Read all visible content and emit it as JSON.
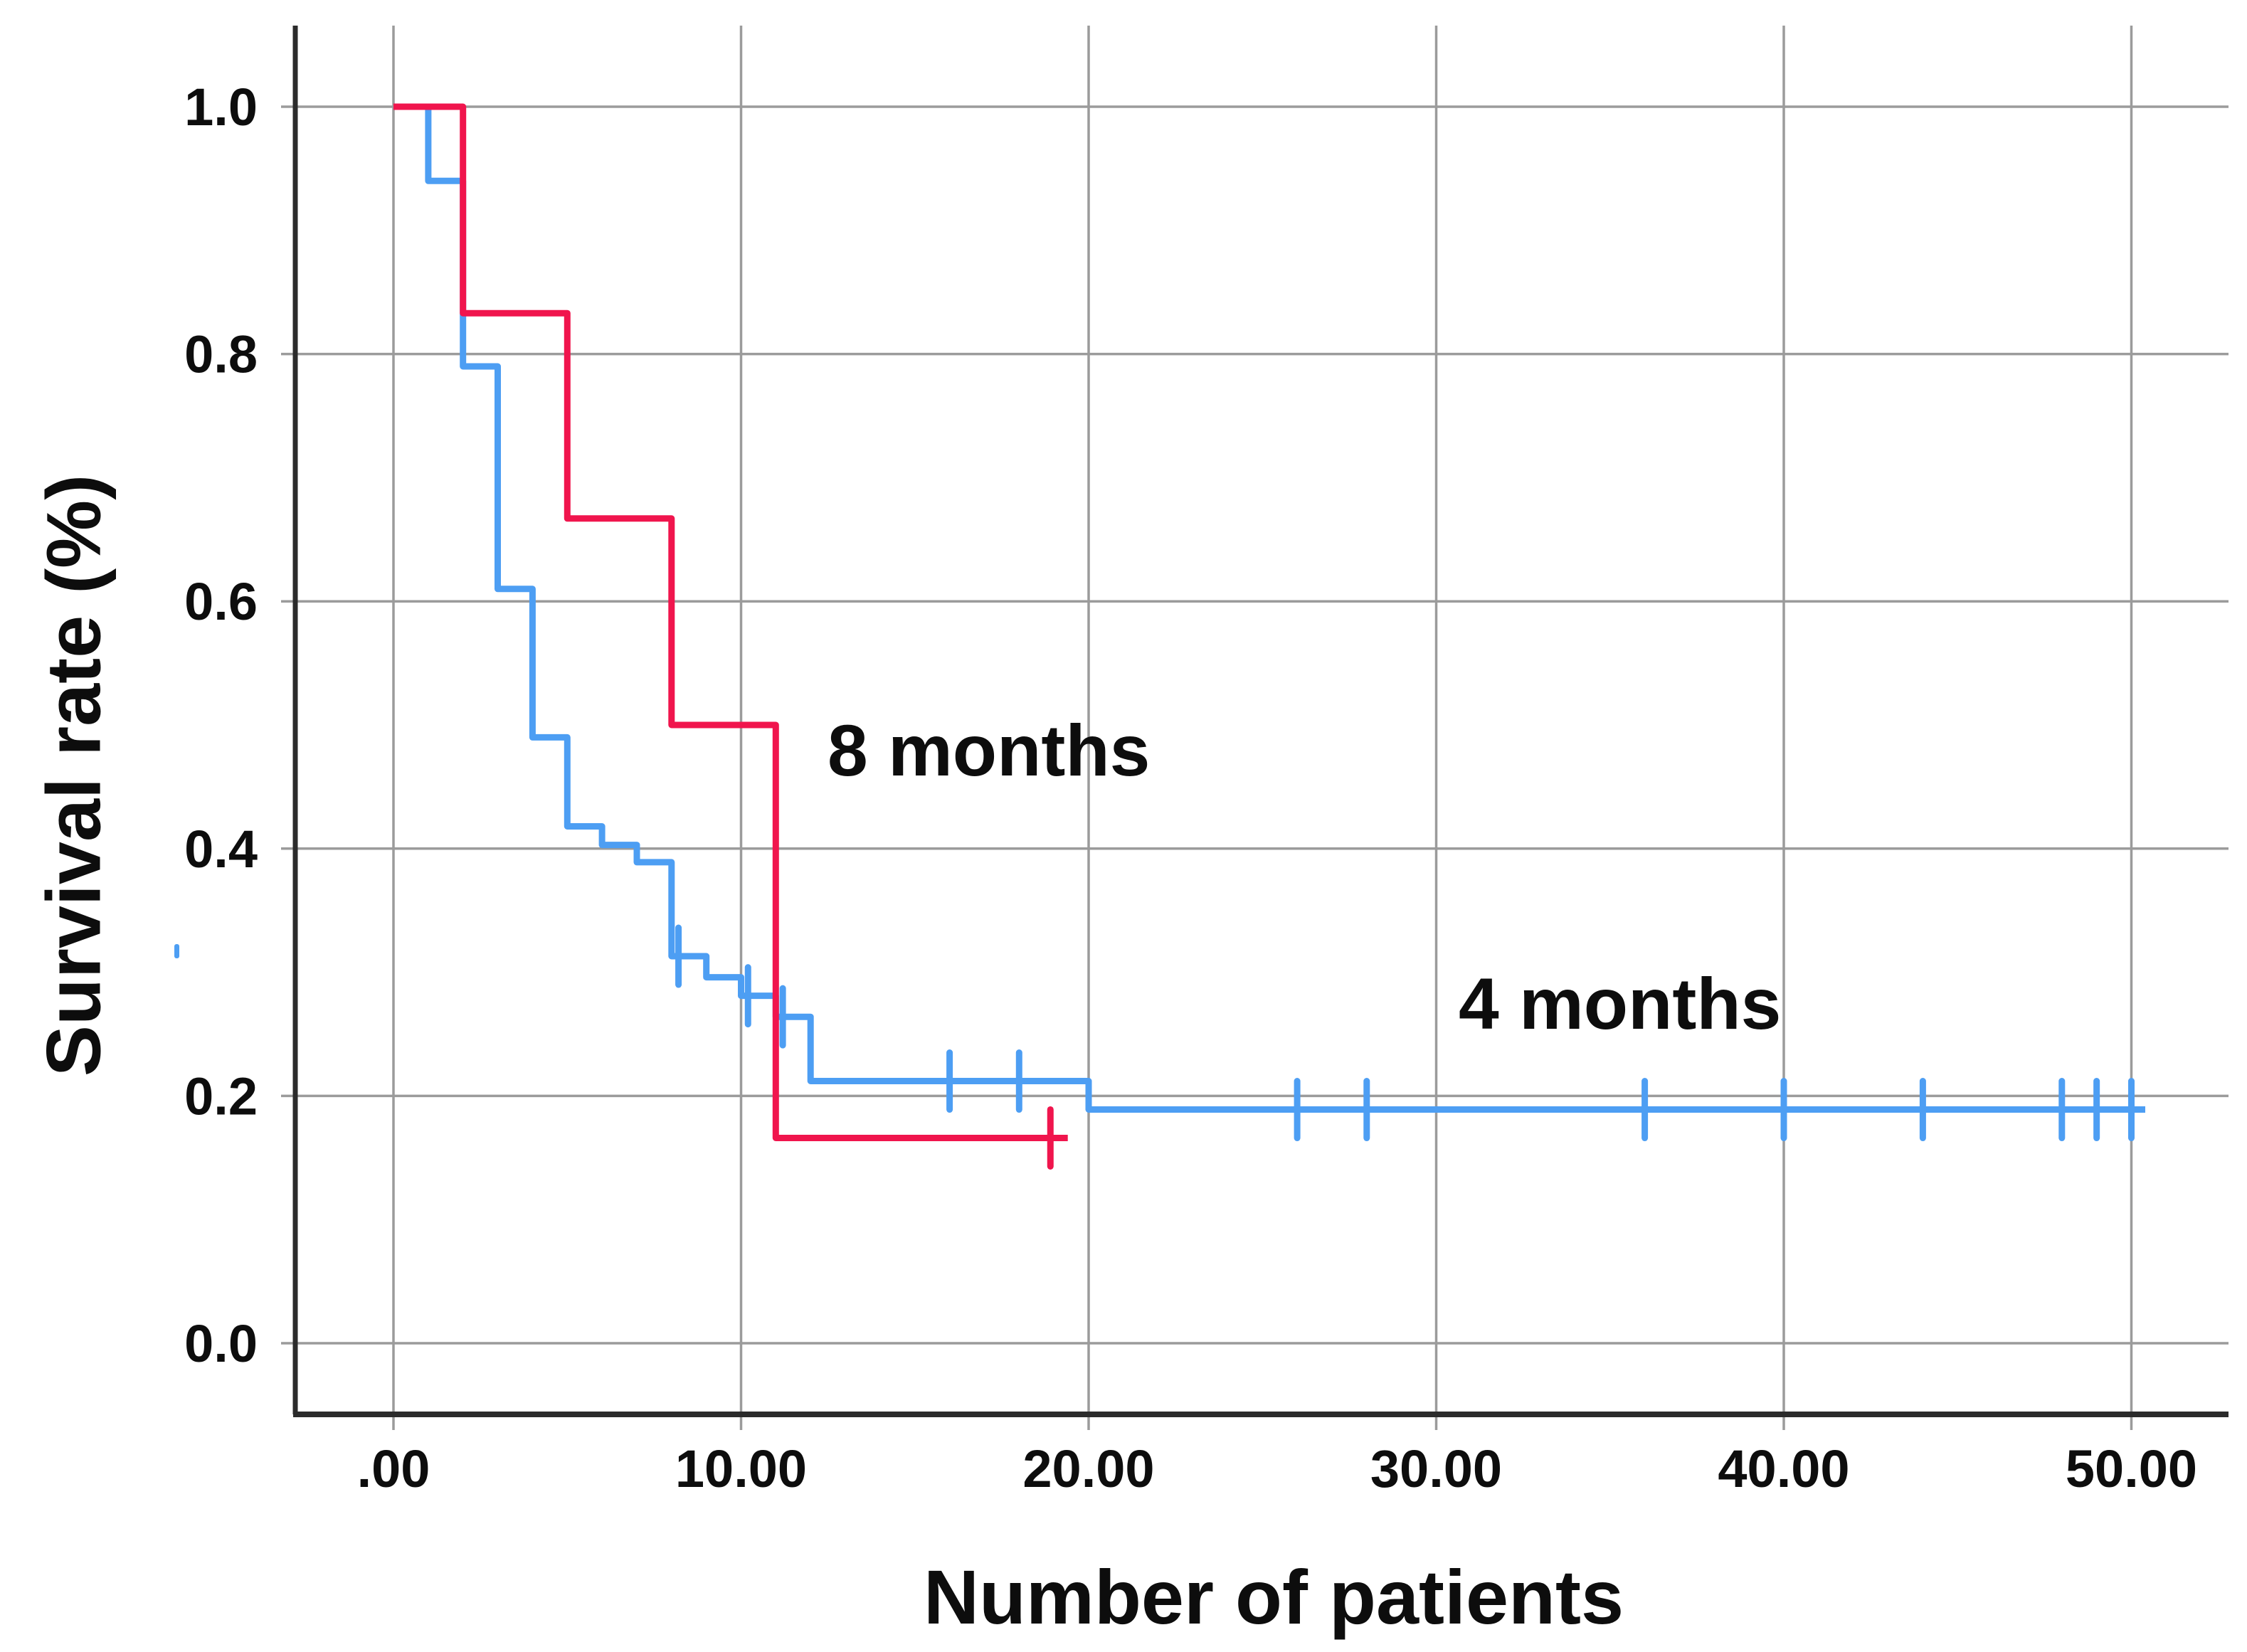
{
  "page": {
    "background": "#ffffff",
    "description": "Kaplan-Meier style survival step chart with two groups and censor tick marks"
  },
  "colors": {
    "series_8_months": "#f0154d",
    "series_4_months": "#4d9ef3",
    "gridline": "#9b9b9b",
    "axis": "#2b2b2b",
    "text": "#0d0d0d",
    "stray_mark": "#4d9ef3"
  },
  "chart_data": {
    "type": "line",
    "subtype": "kaplan-meier-step",
    "title": "",
    "xlabel": "Number of patients",
    "ylabel": "Survival rate (%)",
    "xlim": [
      -2.8,
      52.8
    ],
    "ylim": [
      -0.057,
      1.066
    ],
    "grid": true,
    "legend_position": "none (inline text annotations)",
    "x_ticks": [
      {
        "value": 0,
        "label": ".00"
      },
      {
        "value": 10,
        "label": "10.00"
      },
      {
        "value": 20,
        "label": "20.00"
      },
      {
        "value": 30,
        "label": "30.00"
      },
      {
        "value": 40,
        "label": "40.00"
      },
      {
        "value": 50,
        "label": "50.00"
      }
    ],
    "y_ticks": [
      {
        "value": 0.0,
        "label": "0.0"
      },
      {
        "value": 0.2,
        "label": "0.2"
      },
      {
        "value": 0.4,
        "label": "0.4"
      },
      {
        "value": 0.6,
        "label": "0.6"
      },
      {
        "value": 0.8,
        "label": "0.8"
      },
      {
        "value": 1.0,
        "label": "1.0"
      }
    ],
    "annotations": [
      {
        "text": "8 months",
        "series": "8 months"
      },
      {
        "text": "4 months",
        "series": "4 months"
      }
    ],
    "series": [
      {
        "name": "4 months",
        "color": "#4d9ef3",
        "points": [
          [
            0,
            1.0
          ],
          [
            1,
            1.0
          ],
          [
            1,
            0.94
          ],
          [
            2,
            0.94
          ],
          [
            2,
            0.79
          ],
          [
            3,
            0.79
          ],
          [
            3,
            0.61
          ],
          [
            4,
            0.61
          ],
          [
            4,
            0.49
          ],
          [
            5,
            0.49
          ],
          [
            5,
            0.418
          ],
          [
            6,
            0.418
          ],
          [
            6,
            0.403
          ],
          [
            7,
            0.403
          ],
          [
            7,
            0.389
          ],
          [
            8,
            0.389
          ],
          [
            8,
            0.313
          ],
          [
            9,
            0.313
          ],
          [
            9,
            0.296
          ],
          [
            10,
            0.296
          ],
          [
            10,
            0.281
          ],
          [
            11,
            0.281
          ],
          [
            11,
            0.264
          ],
          [
            12,
            0.264
          ],
          [
            12,
            0.212
          ],
          [
            20,
            0.212
          ],
          [
            20,
            0.189
          ],
          [
            50.4,
            0.189
          ]
        ],
        "censors": [
          [
            8.2,
            0.313
          ],
          [
            10.2,
            0.281
          ],
          [
            11.2,
            0.264
          ],
          [
            16,
            0.212
          ],
          [
            18,
            0.212
          ],
          [
            26,
            0.189
          ],
          [
            28,
            0.189
          ],
          [
            36,
            0.189
          ],
          [
            40,
            0.189
          ],
          [
            44,
            0.189
          ],
          [
            48,
            0.189
          ],
          [
            49,
            0.189
          ],
          [
            50,
            0.189
          ]
        ]
      },
      {
        "name": "8 months",
        "color": "#f0154d",
        "points": [
          [
            0,
            1.0
          ],
          [
            2,
            1.0
          ],
          [
            2,
            0.833
          ],
          [
            5,
            0.833
          ],
          [
            5,
            0.667
          ],
          [
            8,
            0.667
          ],
          [
            8,
            0.5
          ],
          [
            11,
            0.5
          ],
          [
            11,
            0.166
          ],
          [
            19.4,
            0.166
          ]
        ],
        "censors": [
          [
            18.9,
            0.166
          ]
        ]
      }
    ]
  },
  "decorations": {
    "stray_blue_mark": "small blue dash left of y-axis near 0.30 level"
  }
}
